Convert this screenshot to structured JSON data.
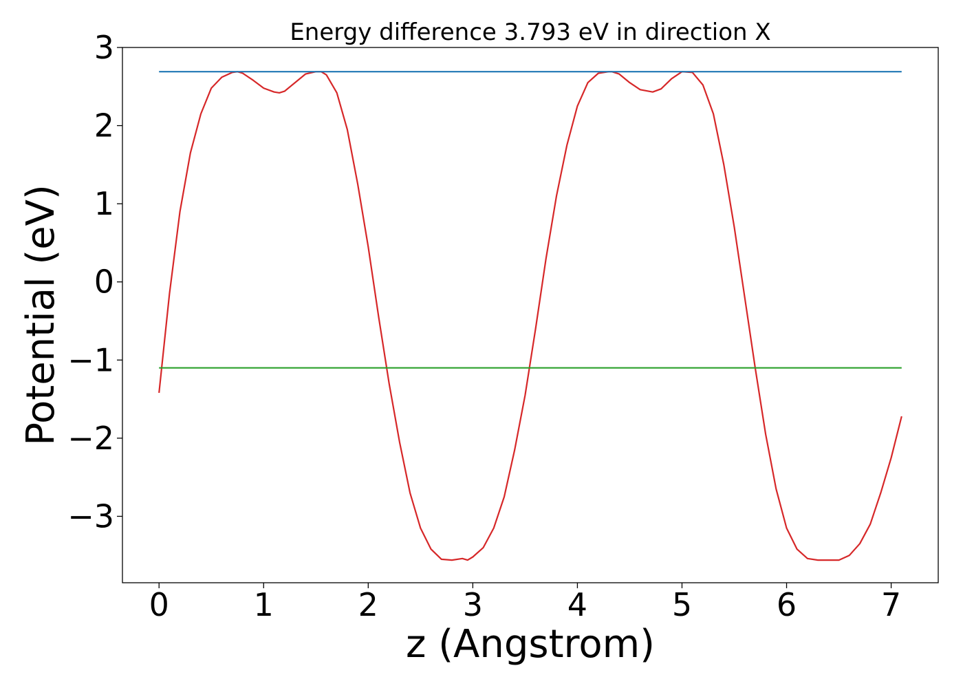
{
  "chart_data": {
    "type": "line",
    "title": "Energy difference 3.793 eV in direction X",
    "xlabel": "z (Angstrom)",
    "ylabel": "Potential (eV)",
    "xlim": [
      -0.35,
      7.45
    ],
    "ylim": [
      -3.85,
      3.0
    ],
    "xticks": [
      0,
      1,
      2,
      3,
      4,
      5,
      6,
      7
    ],
    "xtick_labels": [
      "0",
      "1",
      "2",
      "3",
      "4",
      "5",
      "6",
      "7"
    ],
    "yticks": [
      3,
      2,
      1,
      0,
      -1,
      -2,
      -3
    ],
    "ytick_labels": [
      "3",
      "2",
      "1",
      "0",
      "−1",
      "−2",
      "−3"
    ],
    "grid": false,
    "series": [
      {
        "color": "#d62728",
        "x": [
          0.0,
          0.1,
          0.2,
          0.3,
          0.4,
          0.5,
          0.6,
          0.7,
          0.75,
          0.8,
          0.9,
          1.0,
          1.1,
          1.15,
          1.2,
          1.3,
          1.4,
          1.5,
          1.55,
          1.6,
          1.7,
          1.8,
          1.9,
          2.0,
          2.1,
          2.2,
          2.3,
          2.4,
          2.5,
          2.6,
          2.7,
          2.8,
          2.9,
          2.95,
          3.0,
          3.1,
          3.2,
          3.3,
          3.4,
          3.5,
          3.6,
          3.7,
          3.8,
          3.9,
          4.0,
          4.1,
          4.2,
          4.3,
          4.33,
          4.4,
          4.5,
          4.6,
          4.72,
          4.8,
          4.9,
          5.0,
          5.1,
          5.2,
          5.3,
          5.4,
          5.5,
          5.6,
          5.7,
          5.8,
          5.9,
          6.0,
          6.1,
          6.2,
          6.3,
          6.4,
          6.5,
          6.6,
          6.7,
          6.8,
          6.9,
          7.0,
          7.1
        ],
        "y": [
          -1.42,
          -0.15,
          0.9,
          1.65,
          2.15,
          2.48,
          2.62,
          2.68,
          2.69,
          2.67,
          2.58,
          2.48,
          2.43,
          2.42,
          2.44,
          2.55,
          2.66,
          2.69,
          2.69,
          2.65,
          2.42,
          1.95,
          1.25,
          0.45,
          -0.45,
          -1.3,
          -2.05,
          -2.7,
          -3.15,
          -3.42,
          -3.55,
          -3.56,
          -3.54,
          -3.56,
          -3.52,
          -3.4,
          -3.15,
          -2.75,
          -2.15,
          -1.45,
          -0.6,
          0.3,
          1.1,
          1.75,
          2.25,
          2.55,
          2.67,
          2.69,
          2.69,
          2.66,
          2.55,
          2.46,
          2.43,
          2.47,
          2.6,
          2.69,
          2.68,
          2.52,
          2.15,
          1.5,
          0.7,
          -0.2,
          -1.1,
          -1.95,
          -2.65,
          -3.15,
          -3.42,
          -3.54,
          -3.56,
          -3.56,
          -3.56,
          -3.5,
          -3.35,
          -3.1,
          -2.7,
          -2.25,
          -1.72
        ]
      },
      {
        "color": "#1f77b4",
        "x": [
          0.0,
          7.1
        ],
        "y": [
          2.69,
          2.69
        ]
      },
      {
        "color": "#2ca02c",
        "x": [
          0.0,
          7.1
        ],
        "y": [
          -1.1,
          -1.1
        ]
      }
    ]
  }
}
